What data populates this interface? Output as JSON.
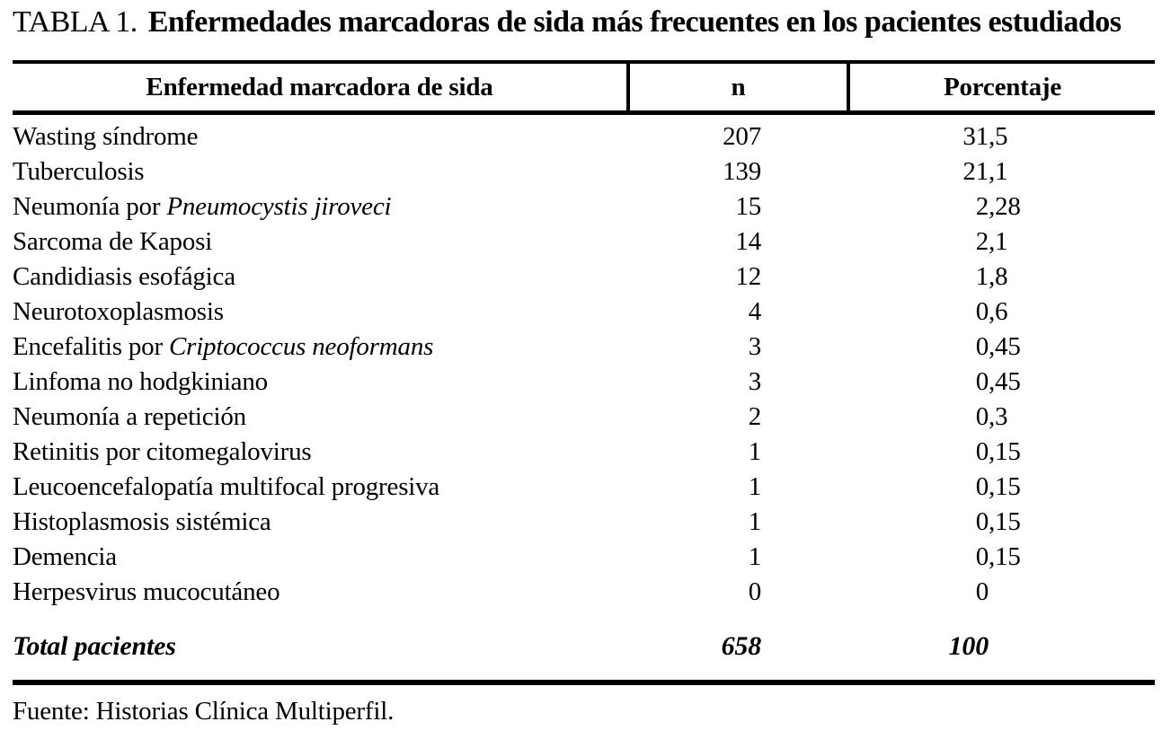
{
  "title": {
    "label": "TABLA 1.",
    "text": "Enfermedades marcadoras de sida más frecuentes en los pacientes estudiados"
  },
  "table": {
    "headers": {
      "disease": "Enfermedad marcadora de sida",
      "n": "n",
      "pct": "Porcentaje"
    },
    "rows": [
      {
        "name": "Wasting síndrome",
        "name_italic": "",
        "n": "207",
        "pct": "31,5"
      },
      {
        "name": "Tuberculosis",
        "name_italic": "",
        "n": "139",
        "pct": "21,1"
      },
      {
        "name": "Neumonía por ",
        "name_italic": "Pneumocystis jiroveci",
        "n": "15",
        "pct": "2,28"
      },
      {
        "name": "Sarcoma de Kaposi",
        "name_italic": "",
        "n": "14",
        "pct": "2,1"
      },
      {
        "name": "Candidiasis esofágica",
        "name_italic": "",
        "n": "12",
        "pct": "1,8"
      },
      {
        "name": "Neurotoxoplasmosis",
        "name_italic": "",
        "n": "4",
        "pct": "0,6"
      },
      {
        "name": "Encefalitis por ",
        "name_italic": "Criptococcus neoformans",
        "n": "3",
        "pct": "0,45"
      },
      {
        "name": "Linfoma no hodgkiniano",
        "name_italic": "",
        "n": "3",
        "pct": "0,45"
      },
      {
        "name": "Neumonía a repetición",
        "name_italic": "",
        "n": "2",
        "pct": "0,3"
      },
      {
        "name": "Retinitis por citomegalovirus",
        "name_italic": "",
        "n": "1",
        "pct": "0,15"
      },
      {
        "name": "Leucoencefalopatía multifocal progresiva",
        "name_italic": "",
        "n": "1",
        "pct": "0,15"
      },
      {
        "name": "Histoplasmosis sistémica",
        "name_italic": "",
        "n": "1",
        "pct": "0,15"
      },
      {
        "name": "Demencia",
        "name_italic": "",
        "n": "1",
        "pct": "0,15"
      },
      {
        "name": "Herpesvirus mucocutáneo",
        "name_italic": "",
        "n": "0",
        "pct": "0"
      }
    ],
    "total": {
      "label": "Total pacientes",
      "n": "658",
      "pct": "100"
    }
  },
  "footer": {
    "source": "Fuente: Historias Clínica Multiperfil."
  },
  "colors": {
    "text": "#000000",
    "background": "#ffffff",
    "rule": "#000000"
  }
}
